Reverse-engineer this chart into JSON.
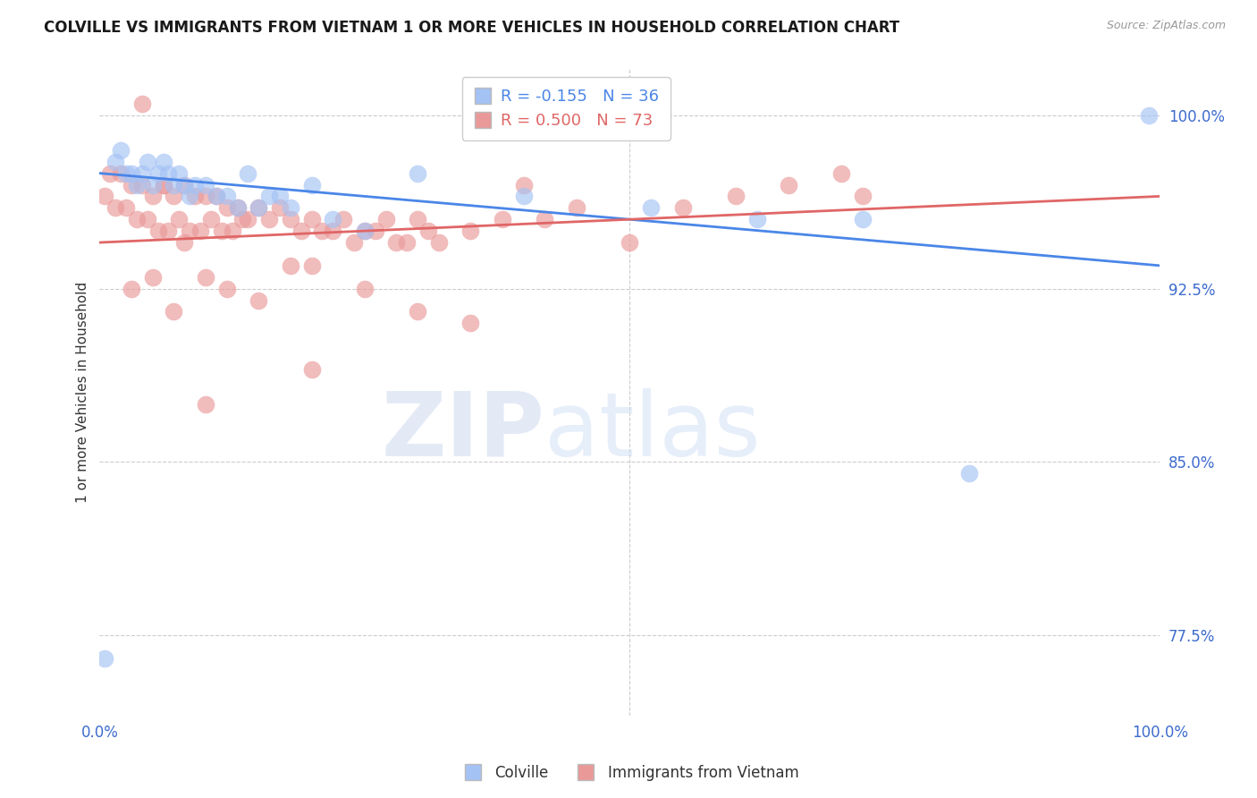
{
  "title": "COLVILLE VS IMMIGRANTS FROM VIETNAM 1 OR MORE VEHICLES IN HOUSEHOLD CORRELATION CHART",
  "source": "Source: ZipAtlas.com",
  "ylabel": "1 or more Vehicles in Household",
  "xlim": [
    0,
    100
  ],
  "ylim": [
    74,
    102
  ],
  "yticks": [
    77.5,
    85.0,
    92.5,
    100.0
  ],
  "xticks": [
    0,
    100
  ],
  "xtick_labels": [
    "0.0%",
    "100.0%"
  ],
  "ytick_labels": [
    "77.5%",
    "85.0%",
    "92.5%",
    "100.0%"
  ],
  "legend_blue_r": "-0.155",
  "legend_blue_n": "36",
  "legend_pink_r": "0.500",
  "legend_pink_n": "73",
  "legend_label_blue": "Colville",
  "legend_label_pink": "Immigrants from Vietnam",
  "blue_color": "#a4c2f4",
  "pink_color": "#ea9999",
  "blue_line_color": "#4a86e8",
  "pink_line_color": "#e06666",
  "watermark_zip": "ZIP",
  "watermark_atlas": "atlas",
  "blue_scatter_x": [
    0.5,
    1.5,
    2.0,
    2.5,
    3.0,
    3.5,
    4.0,
    4.5,
    5.0,
    5.5,
    6.0,
    6.5,
    7.0,
    7.5,
    8.0,
    8.5,
    9.0,
    10.0,
    11.0,
    12.0,
    13.0,
    14.0,
    15.0,
    16.0,
    17.0,
    18.0,
    20.0,
    22.0,
    25.0,
    30.0,
    40.0,
    52.0,
    62.0,
    72.0,
    82.0,
    99.0
  ],
  "blue_scatter_y": [
    76.5,
    98.0,
    98.5,
    97.5,
    97.5,
    97.0,
    97.5,
    98.0,
    97.0,
    97.5,
    98.0,
    97.5,
    97.0,
    97.5,
    97.0,
    96.5,
    97.0,
    97.0,
    96.5,
    96.5,
    96.0,
    97.5,
    96.0,
    96.5,
    96.5,
    96.0,
    97.0,
    95.5,
    95.0,
    97.5,
    96.5,
    96.0,
    95.5,
    95.5,
    84.5,
    100.0
  ],
  "pink_scatter_x": [
    0.5,
    1.0,
    1.5,
    2.0,
    2.5,
    3.0,
    3.5,
    4.0,
    4.5,
    5.0,
    5.5,
    6.0,
    6.5,
    7.0,
    7.5,
    8.0,
    8.5,
    9.0,
    9.5,
    10.0,
    10.5,
    11.0,
    11.5,
    12.0,
    12.5,
    13.0,
    13.5,
    14.0,
    15.0,
    16.0,
    17.0,
    18.0,
    19.0,
    20.0,
    21.0,
    22.0,
    23.0,
    24.0,
    25.0,
    26.0,
    27.0,
    28.0,
    29.0,
    30.0,
    31.0,
    32.0,
    35.0,
    38.0,
    40.0,
    42.0,
    45.0,
    50.0,
    55.0,
    60.0,
    65.0,
    70.0,
    72.0,
    18.0,
    20.0,
    8.0,
    5.0,
    3.0,
    12.0,
    7.0,
    10.0,
    15.0,
    25.0,
    30.0,
    35.0,
    20.0,
    10.0,
    6.0,
    4.0
  ],
  "pink_scatter_y": [
    96.5,
    97.5,
    96.0,
    97.5,
    96.0,
    97.0,
    95.5,
    97.0,
    95.5,
    96.5,
    95.0,
    97.0,
    95.0,
    96.5,
    95.5,
    97.0,
    95.0,
    96.5,
    95.0,
    96.5,
    95.5,
    96.5,
    95.0,
    96.0,
    95.0,
    96.0,
    95.5,
    95.5,
    96.0,
    95.5,
    96.0,
    95.5,
    95.0,
    95.5,
    95.0,
    95.0,
    95.5,
    94.5,
    95.0,
    95.0,
    95.5,
    94.5,
    94.5,
    95.5,
    95.0,
    94.5,
    95.0,
    95.5,
    97.0,
    95.5,
    96.0,
    94.5,
    96.0,
    96.5,
    97.0,
    97.5,
    96.5,
    93.5,
    93.5,
    94.5,
    93.0,
    92.5,
    92.5,
    91.5,
    93.0,
    92.0,
    92.5,
    91.5,
    91.0,
    89.0,
    87.5,
    97.0,
    100.5
  ],
  "blue_reg_x0": 0,
  "blue_reg_y0": 97.5,
  "blue_reg_x1": 100,
  "blue_reg_y1": 93.5,
  "pink_reg_x0": 0,
  "pink_reg_y0": 94.5,
  "pink_reg_x1": 100,
  "pink_reg_y1": 96.5
}
